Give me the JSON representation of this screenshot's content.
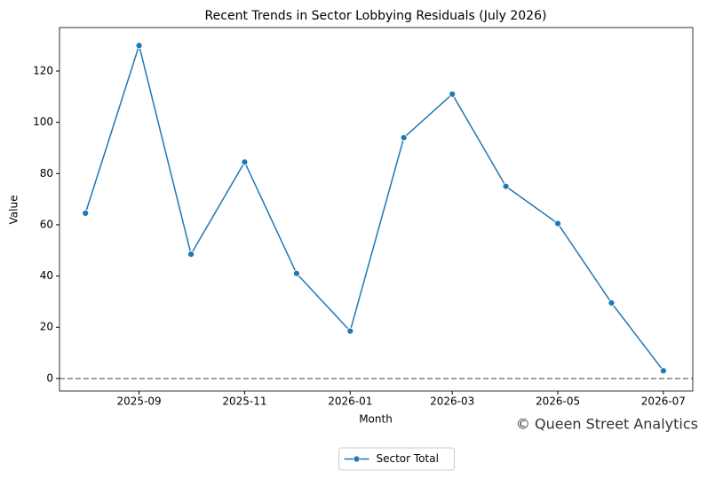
{
  "chart_data": {
    "type": "line",
    "title": "Recent Trends in Sector Lobbying Residuals (July 2026)",
    "x_label": "Month",
    "y_label": "Value",
    "x": [
      "2025-08",
      "2025-09",
      "2025-10",
      "2025-11",
      "2025-12",
      "2026-01",
      "2026-02",
      "2026-03",
      "2026-04",
      "2026-05",
      "2026-06",
      "2026-07"
    ],
    "series": [
      {
        "name": "Sector Total",
        "color": "#1f77b4",
        "values": [
          64.5,
          130,
          48.5,
          84.5,
          41,
          18.5,
          94,
          111,
          75,
          60.5,
          29.5,
          3
        ]
      }
    ],
    "xlim": [
      "2025-07-17",
      "2026-07-18"
    ],
    "xticks": [
      "2025-09",
      "2025-11",
      "2026-01",
      "2026-03",
      "2026-05",
      "2026-07"
    ],
    "ylim": [
      -4.9,
      137
    ],
    "yticks": [
      0,
      20,
      40,
      60,
      80,
      100,
      120
    ],
    "hline": 0,
    "hline_color": "#808080",
    "grid": false,
    "legend": "lower center",
    "watermark": "© Queen Street Analytics"
  }
}
